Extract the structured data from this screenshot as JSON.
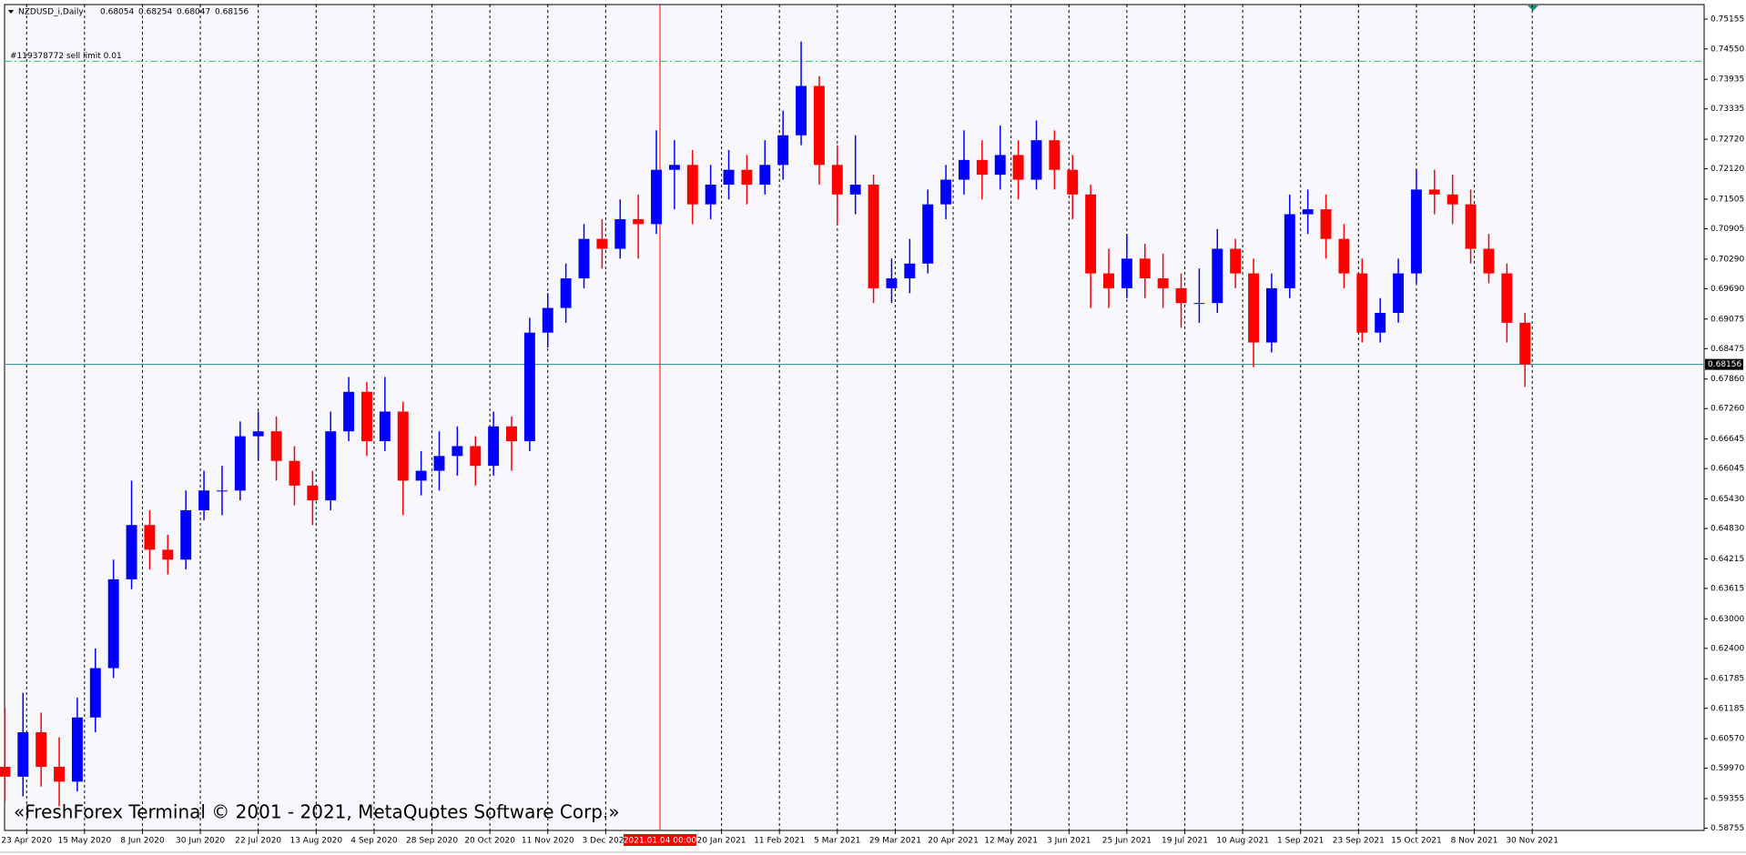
{
  "chart_data": {
    "type": "candlestick",
    "title": "NZDUSD_i,Daily",
    "header_values": [
      0.68054,
      0.68254,
      0.68047,
      0.68156
    ],
    "x": [
      -6,
      -1,
      4,
      9,
      14,
      19,
      24,
      29,
      34,
      39,
      44,
      49,
      54,
      59,
      64,
      69,
      74,
      79,
      84,
      89,
      94,
      99,
      104,
      109,
      114,
      119,
      124,
      129,
      134,
      139,
      144,
      149,
      154,
      159,
      164,
      169,
      174,
      179,
      184,
      189,
      194,
      199,
      204,
      209,
      214,
      219,
      224,
      229,
      234,
      239,
      244,
      249,
      254,
      259,
      264,
      269,
      274,
      279,
      284,
      289,
      294,
      299,
      304,
      309,
      314,
      319,
      324,
      329,
      334,
      339,
      344,
      349,
      354,
      359,
      364,
      369,
      374,
      379,
      384,
      389,
      394,
      399,
      404,
      409,
      414
    ],
    "open": [
      0.6,
      0.598,
      0.607,
      0.6,
      0.597,
      0.61,
      0.62,
      0.638,
      0.649,
      0.644,
      0.642,
      0.652,
      0.656,
      0.656,
      0.667,
      0.668,
      0.662,
      0.657,
      0.654,
      0.668,
      0.676,
      0.666,
      0.672,
      0.658,
      0.66,
      0.663,
      0.665,
      0.661,
      0.669,
      0.666,
      0.688,
      0.693,
      0.699,
      0.707,
      0.705,
      0.711,
      0.71,
      0.721,
      0.722,
      0.714,
      0.718,
      0.721,
      0.718,
      0.722,
      0.728,
      0.738,
      0.722,
      0.716,
      0.718,
      0.697,
      0.699,
      0.702,
      0.714,
      0.719,
      0.723,
      0.72,
      0.724,
      0.719,
      0.727,
      0.721,
      0.716,
      0.7,
      0.697,
      0.703,
      0.699,
      0.697,
      0.694,
      0.694,
      0.705,
      0.7,
      0.686,
      0.697,
      0.712,
      0.713,
      0.707,
      0.7,
      0.688,
      0.692,
      0.7,
      0.717,
      0.716,
      0.714,
      0.705,
      0.7,
      0.69
    ],
    "high": [
      0.612,
      0.615,
      0.611,
      0.606,
      0.614,
      0.624,
      0.642,
      0.658,
      0.652,
      0.647,
      0.656,
      0.66,
      0.661,
      0.67,
      0.672,
      0.671,
      0.665,
      0.66,
      0.672,
      0.679,
      0.678,
      0.679,
      0.674,
      0.664,
      0.668,
      0.669,
      0.667,
      0.672,
      0.671,
      0.691,
      0.696,
      0.702,
      0.71,
      0.711,
      0.715,
      0.716,
      0.729,
      0.727,
      0.725,
      0.722,
      0.725,
      0.724,
      0.727,
      0.733,
      0.747,
      0.74,
      0.726,
      0.728,
      0.72,
      0.703,
      0.707,
      0.717,
      0.722,
      0.729,
      0.727,
      0.73,
      0.727,
      0.731,
      0.729,
      0.724,
      0.718,
      0.705,
      0.708,
      0.706,
      0.704,
      0.7,
      0.701,
      0.709,
      0.707,
      0.703,
      0.7,
      0.716,
      0.717,
      0.716,
      0.71,
      0.703,
      0.695,
      0.703,
      0.721,
      0.721,
      0.72,
      0.717,
      0.708,
      0.702,
      0.692
    ],
    "low": [
      0.593,
      0.594,
      0.596,
      0.592,
      0.595,
      0.607,
      0.618,
      0.636,
      0.64,
      0.639,
      0.64,
      0.65,
      0.651,
      0.654,
      0.662,
      0.658,
      0.653,
      0.649,
      0.652,
      0.666,
      0.663,
      0.664,
      0.651,
      0.655,
      0.656,
      0.659,
      0.657,
      0.659,
      0.66,
      0.664,
      0.685,
      0.69,
      0.697,
      0.701,
      0.703,
      0.703,
      0.708,
      0.713,
      0.71,
      0.711,
      0.715,
      0.714,
      0.716,
      0.719,
      0.726,
      0.718,
      0.71,
      0.712,
      0.694,
      0.694,
      0.696,
      0.7,
      0.711,
      0.716,
      0.715,
      0.717,
      0.715,
      0.717,
      0.717,
      0.711,
      0.693,
      0.693,
      0.695,
      0.695,
      0.693,
      0.689,
      0.69,
      0.692,
      0.697,
      0.681,
      0.684,
      0.695,
      0.708,
      0.703,
      0.697,
      0.686,
      0.686,
      0.69,
      0.698,
      0.712,
      0.71,
      0.702,
      0.698,
      0.686,
      0.677
    ],
    "close": [
      0.598,
      0.607,
      0.6,
      0.597,
      0.61,
      0.62,
      0.638,
      0.649,
      0.644,
      0.642,
      0.652,
      0.656,
      0.656,
      0.667,
      0.668,
      0.662,
      0.657,
      0.654,
      0.668,
      0.676,
      0.666,
      0.672,
      0.658,
      0.66,
      0.663,
      0.665,
      0.661,
      0.669,
      0.666,
      0.688,
      0.693,
      0.699,
      0.707,
      0.705,
      0.711,
      0.71,
      0.721,
      0.722,
      0.714,
      0.718,
      0.721,
      0.718,
      0.722,
      0.728,
      0.738,
      0.722,
      0.716,
      0.718,
      0.697,
      0.699,
      0.702,
      0.714,
      0.719,
      0.723,
      0.72,
      0.724,
      0.719,
      0.727,
      0.721,
      0.716,
      0.7,
      0.697,
      0.703,
      0.699,
      0.697,
      0.694,
      0.694,
      0.705,
      0.7,
      0.686,
      0.697,
      0.712,
      0.713,
      0.707,
      0.7,
      0.688,
      0.692,
      0.7,
      0.717,
      0.716,
      0.714,
      0.705,
      0.7,
      0.69,
      0.68156
    ],
    "up_color": "#0000ff",
    "down_color": "#ff0000",
    "xlim": [
      -6.1,
      463.5
    ],
    "xticks": [
      {
        "value": 0,
        "label": "23 Apr 2020"
      },
      {
        "value": 16,
        "label": "15 May 2020"
      },
      {
        "value": 32,
        "label": "8 Jun 2020"
      },
      {
        "value": 48,
        "label": "30 Jun 2020"
      },
      {
        "value": 64,
        "label": "22 Jul 2020"
      },
      {
        "value": 80,
        "label": "13 Aug 2020"
      },
      {
        "value": 96,
        "label": "4 Sep 2020"
      },
      {
        "value": 112,
        "label": "28 Sep 2020"
      },
      {
        "value": 128,
        "label": "20 Oct 2020"
      },
      {
        "value": 144,
        "label": "11 Nov 2020"
      },
      {
        "value": 160,
        "label": "3 Dec 2020"
      },
      {
        "value": 192,
        "label": "20 Jan 2021"
      },
      {
        "value": 208,
        "label": "11 Feb 2021"
      },
      {
        "value": 224,
        "label": "5 Mar 2021"
      },
      {
        "value": 240,
        "label": "29 Mar 2021"
      },
      {
        "value": 256,
        "label": "20 Apr 2021"
      },
      {
        "value": 272,
        "label": "12 May 2021"
      },
      {
        "value": 288,
        "label": "3 Jun 2021"
      },
      {
        "value": 304,
        "label": "25 Jun 2021"
      },
      {
        "value": 320,
        "label": "19 Jul 2021"
      },
      {
        "value": 336,
        "label": "10 Aug 2021"
      },
      {
        "value": 352,
        "label": "1 Sep 2021"
      },
      {
        "value": 368,
        "label": "23 Sep 2021"
      },
      {
        "value": 384,
        "label": "15 Oct 2021"
      },
      {
        "value": 400,
        "label": "8 Nov 2021"
      },
      {
        "value": 416,
        "label": "30 Nov 2021"
      }
    ],
    "ylim": [
      0.5871,
      0.7545
    ],
    "yticks": [
      0.75155,
      {
        "value": 0.7455,
        "label": "0.74550"
      },
      0.73935,
      0.73335,
      {
        "value": 0.7272,
        "label": "0.72720"
      },
      {
        "value": 0.7212,
        "label": "0.72120"
      },
      0.71505,
      0.70905,
      {
        "value": 0.7029,
        "label": "0.70290"
      },
      {
        "value": 0.6969,
        "label": "0.69690"
      },
      0.69075,
      0.68475,
      {
        "value": 0.6786,
        "label": "0.67860"
      },
      {
        "value": 0.6726,
        "label": "0.67260"
      },
      0.66645,
      0.66045,
      {
        "value": 0.6543,
        "label": "0.65430"
      },
      {
        "value": 0.6483,
        "label": "0.64830"
      },
      0.64215,
      0.63615,
      {
        "value": 0.63,
        "label": "0.63000"
      },
      {
        "value": 0.624,
        "label": "0.62400"
      },
      0.61785,
      0.61185,
      {
        "value": 0.6057,
        "label": "0.60570"
      },
      {
        "value": 0.5997,
        "label": "0.59970"
      },
      0.59355,
      0.58755
    ],
    "grid": true,
    "price_line": {
      "value": 0.68156,
      "color": "#2a8a8a"
    },
    "order_line": {
      "value": 0.743,
      "label": "#119378772 sell limit 0.01",
      "color": "#22c55e"
    },
    "time_marker": {
      "value": 175,
      "label": "2021.01.04 00:00",
      "color": "#ff0000"
    },
    "watermark": "«FreshForex Terminal © 2001 - 2021, MetaQuotes Software Corp.»"
  }
}
